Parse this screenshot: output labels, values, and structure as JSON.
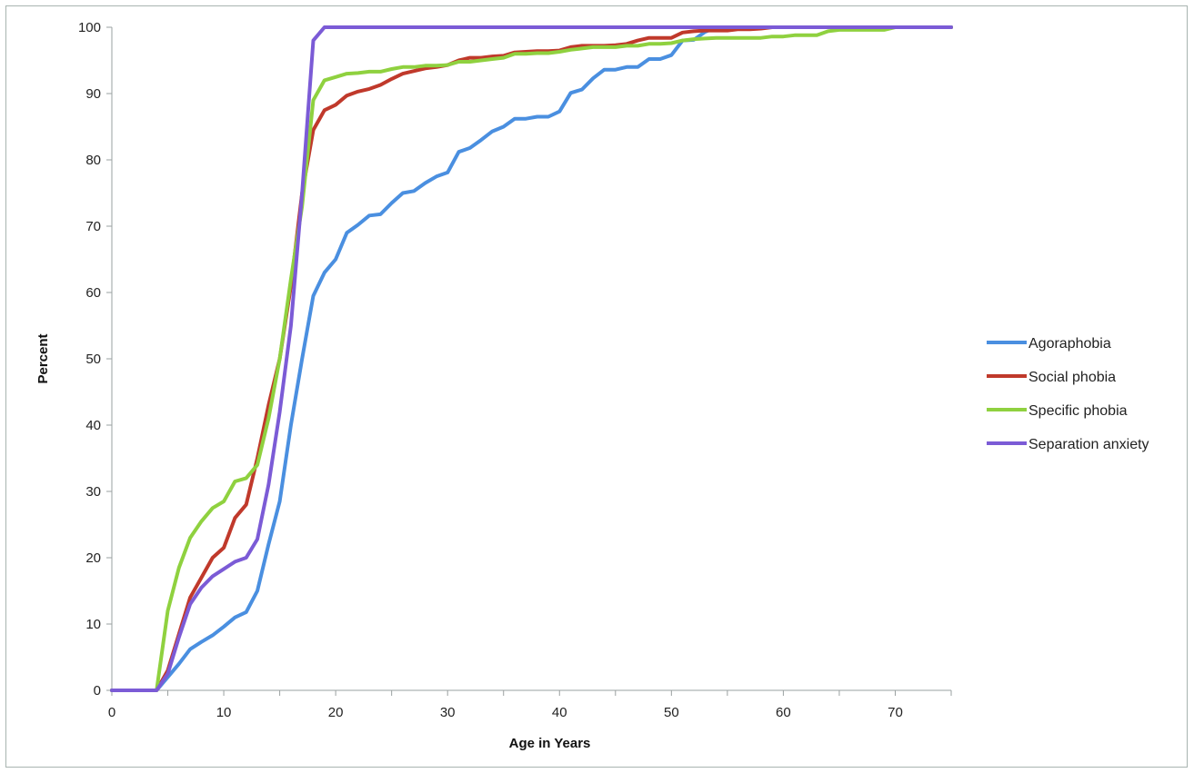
{
  "chart_data": {
    "type": "line",
    "title": "",
    "xlabel": "Age in Years",
    "ylabel": "Percent",
    "xlim": [
      0,
      75
    ],
    "ylim": [
      0,
      100
    ],
    "x_ticks": [
      0,
      10,
      20,
      30,
      40,
      50,
      60,
      70
    ],
    "y_ticks": [
      0,
      10,
      20,
      30,
      40,
      50,
      60,
      70,
      80,
      90,
      100
    ],
    "grid": false,
    "legend_position": "right",
    "series": [
      {
        "name": "Agoraphobia",
        "color": "#4a8fe0",
        "points": [
          [
            0,
            0
          ],
          [
            1,
            0
          ],
          [
            2,
            0
          ],
          [
            3,
            0
          ],
          [
            4,
            0
          ],
          [
            5,
            2
          ],
          [
            6,
            4
          ],
          [
            7,
            6.2
          ],
          [
            8,
            7.3
          ],
          [
            9,
            8.3
          ],
          [
            10,
            9.6
          ],
          [
            11,
            11
          ],
          [
            12,
            11.8
          ],
          [
            13,
            15
          ],
          [
            14,
            22
          ],
          [
            15,
            28.5
          ],
          [
            16,
            40
          ],
          [
            17,
            50
          ],
          [
            18,
            59.5
          ],
          [
            19,
            63
          ],
          [
            20,
            65
          ],
          [
            21,
            69
          ],
          [
            22,
            70.2
          ],
          [
            23,
            71.6
          ],
          [
            24,
            71.8
          ],
          [
            25,
            73.5
          ],
          [
            26,
            75
          ],
          [
            27,
            75.3
          ],
          [
            28,
            76.5
          ],
          [
            29,
            77.5
          ],
          [
            30,
            78.1
          ],
          [
            31,
            81.2
          ],
          [
            32,
            81.8
          ],
          [
            33,
            83
          ],
          [
            34,
            84.3
          ],
          [
            35,
            85
          ],
          [
            36,
            86.2
          ],
          [
            37,
            86.2
          ],
          [
            38,
            86.5
          ],
          [
            39,
            86.5
          ],
          [
            40,
            87.3
          ],
          [
            41,
            90.1
          ],
          [
            42,
            90.6
          ],
          [
            43,
            92.3
          ],
          [
            44,
            93.6
          ],
          [
            45,
            93.6
          ],
          [
            46,
            94
          ],
          [
            47,
            94
          ],
          [
            48,
            95.2
          ],
          [
            49,
            95.2
          ],
          [
            50,
            95.8
          ],
          [
            51,
            98
          ],
          [
            52,
            98.1
          ],
          [
            53,
            99.3
          ],
          [
            54,
            100
          ],
          [
            60,
            100
          ],
          [
            70,
            100
          ],
          [
            75,
            100
          ]
        ]
      },
      {
        "name": "Social phobia",
        "color": "#c0392b",
        "points": [
          [
            0,
            0
          ],
          [
            1,
            0
          ],
          [
            2,
            0
          ],
          [
            3,
            0
          ],
          [
            4,
            0
          ],
          [
            5,
            3
          ],
          [
            6,
            8.5
          ],
          [
            7,
            14
          ],
          [
            8,
            17
          ],
          [
            9,
            20
          ],
          [
            10,
            21.5
          ],
          [
            11,
            26
          ],
          [
            12,
            28
          ],
          [
            13,
            35
          ],
          [
            14,
            43
          ],
          [
            15,
            50
          ],
          [
            16,
            61
          ],
          [
            17,
            75
          ],
          [
            18,
            84.5
          ],
          [
            19,
            87.5
          ],
          [
            20,
            88.3
          ],
          [
            21,
            89.7
          ],
          [
            22,
            90.3
          ],
          [
            23,
            90.7
          ],
          [
            24,
            91.3
          ],
          [
            25,
            92.2
          ],
          [
            26,
            93
          ],
          [
            27,
            93.4
          ],
          [
            28,
            93.8
          ],
          [
            29,
            94
          ],
          [
            30,
            94.3
          ],
          [
            31,
            95
          ],
          [
            32,
            95.4
          ],
          [
            33,
            95.4
          ],
          [
            34,
            95.6
          ],
          [
            35,
            95.7
          ],
          [
            36,
            96.2
          ],
          [
            37,
            96.3
          ],
          [
            38,
            96.4
          ],
          [
            39,
            96.4
          ],
          [
            40,
            96.5
          ],
          [
            41,
            97
          ],
          [
            42,
            97.2
          ],
          [
            43,
            97.2
          ],
          [
            44,
            97.2
          ],
          [
            45,
            97.3
          ],
          [
            46,
            97.5
          ],
          [
            47,
            98
          ],
          [
            48,
            98.4
          ],
          [
            49,
            98.4
          ],
          [
            50,
            98.4
          ],
          [
            51,
            99.2
          ],
          [
            52,
            99.4
          ],
          [
            53,
            99.5
          ],
          [
            54,
            99.5
          ],
          [
            55,
            99.5
          ],
          [
            56,
            99.7
          ],
          [
            57,
            99.7
          ],
          [
            58,
            99.8
          ],
          [
            59,
            100
          ],
          [
            60,
            100
          ],
          [
            70,
            100
          ],
          [
            75,
            100
          ]
        ]
      },
      {
        "name": "Specific phobia",
        "color": "#8fd13f",
        "points": [
          [
            0,
            0
          ],
          [
            1,
            0
          ],
          [
            2,
            0
          ],
          [
            3,
            0
          ],
          [
            4,
            0
          ],
          [
            5,
            12
          ],
          [
            6,
            18.5
          ],
          [
            7,
            23
          ],
          [
            8,
            25.5
          ],
          [
            9,
            27.5
          ],
          [
            10,
            28.5
          ],
          [
            11,
            31.5
          ],
          [
            12,
            32
          ],
          [
            13,
            34
          ],
          [
            14,
            41
          ],
          [
            15,
            50
          ],
          [
            16,
            62
          ],
          [
            17,
            73
          ],
          [
            18,
            89
          ],
          [
            19,
            92
          ],
          [
            20,
            92.5
          ],
          [
            21,
            93
          ],
          [
            22,
            93.1
          ],
          [
            23,
            93.3
          ],
          [
            24,
            93.3
          ],
          [
            25,
            93.7
          ],
          [
            26,
            94
          ],
          [
            27,
            94
          ],
          [
            28,
            94.2
          ],
          [
            29,
            94.2
          ],
          [
            30,
            94.3
          ],
          [
            31,
            94.8
          ],
          [
            32,
            94.8
          ],
          [
            33,
            95
          ],
          [
            34,
            95.2
          ],
          [
            35,
            95.4
          ],
          [
            36,
            96
          ],
          [
            37,
            96
          ],
          [
            38,
            96.1
          ],
          [
            39,
            96.1
          ],
          [
            40,
            96.3
          ],
          [
            41,
            96.6
          ],
          [
            42,
            96.8
          ],
          [
            43,
            97
          ],
          [
            44,
            97
          ],
          [
            45,
            97
          ],
          [
            46,
            97.2
          ],
          [
            47,
            97.2
          ],
          [
            48,
            97.5
          ],
          [
            49,
            97.5
          ],
          [
            50,
            97.6
          ],
          [
            51,
            98
          ],
          [
            52,
            98.2
          ],
          [
            53,
            98.3
          ],
          [
            54,
            98.4
          ],
          [
            55,
            98.4
          ],
          [
            56,
            98.4
          ],
          [
            57,
            98.4
          ],
          [
            58,
            98.4
          ],
          [
            59,
            98.6
          ],
          [
            60,
            98.6
          ],
          [
            61,
            98.8
          ],
          [
            62,
            98.8
          ],
          [
            63,
            98.8
          ],
          [
            64,
            99.4
          ],
          [
            65,
            99.6
          ],
          [
            66,
            99.6
          ],
          [
            67,
            99.6
          ],
          [
            68,
            99.6
          ],
          [
            69,
            99.6
          ],
          [
            70,
            100
          ],
          [
            75,
            100
          ]
        ]
      },
      {
        "name": "Separation anxiety",
        "color": "#7b5bd6",
        "points": [
          [
            0,
            0
          ],
          [
            1,
            0
          ],
          [
            2,
            0
          ],
          [
            3,
            0
          ],
          [
            4,
            0
          ],
          [
            5,
            2.5
          ],
          [
            6,
            8
          ],
          [
            7,
            13
          ],
          [
            8,
            15.5
          ],
          [
            9,
            17.2
          ],
          [
            10,
            18.3
          ],
          [
            11,
            19.4
          ],
          [
            12,
            20
          ],
          [
            13,
            22.8
          ],
          [
            14,
            31
          ],
          [
            15,
            42
          ],
          [
            16,
            55
          ],
          [
            17,
            75
          ],
          [
            18,
            98
          ],
          [
            19,
            100
          ],
          [
            20,
            100
          ],
          [
            30,
            100
          ],
          [
            40,
            100
          ],
          [
            50,
            100
          ],
          [
            60,
            100
          ],
          [
            70,
            100
          ],
          [
            75,
            100
          ]
        ]
      }
    ]
  }
}
